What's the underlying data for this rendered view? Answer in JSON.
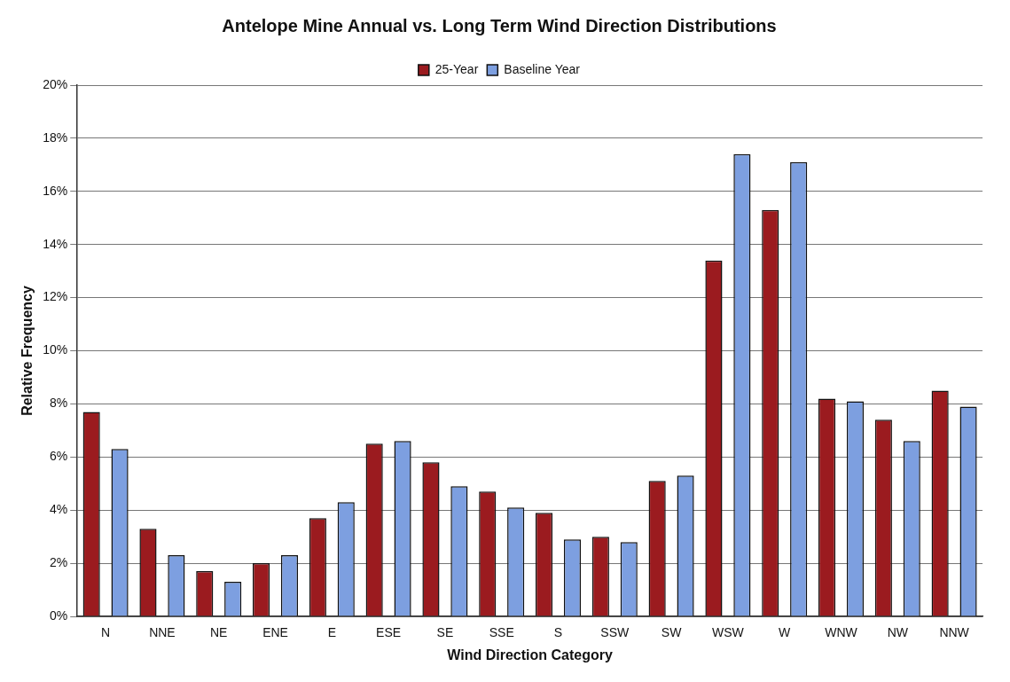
{
  "chart_data": {
    "type": "bar",
    "title": "Antelope Mine Annual vs. Long Term Wind Direction Distributions",
    "xlabel": "Wind Direction Category",
    "ylabel": "Relative Frequency",
    "categories": [
      "N",
      "NNE",
      "NE",
      "ENE",
      "E",
      "ESE",
      "SE",
      "SSE",
      "S",
      "SSW",
      "SW",
      "WSW",
      "W",
      "WNW",
      "NW",
      "NNW"
    ],
    "series": [
      {
        "name": "25-Year",
        "color": "#9b1b1f",
        "values": [
          7.7,
          3.3,
          1.7,
          2.0,
          3.7,
          6.5,
          5.8,
          4.7,
          3.9,
          3.0,
          5.1,
          13.4,
          15.3,
          8.2,
          7.4,
          8.5
        ]
      },
      {
        "name": "Baseline Year",
        "color": "#7d9fe0",
        "values": [
          6.3,
          2.3,
          1.3,
          2.3,
          4.3,
          6.6,
          4.9,
          4.1,
          2.9,
          2.8,
          5.3,
          17.4,
          17.1,
          8.1,
          6.6,
          7.9
        ]
      }
    ],
    "ylim": [
      0,
      20
    ],
    "yticks": [
      {
        "value": 0,
        "label": "0%"
      },
      {
        "value": 2,
        "label": "2%"
      },
      {
        "value": 4,
        "label": "4%"
      },
      {
        "value": 6,
        "label": "6%"
      },
      {
        "value": 8,
        "label": "8%"
      },
      {
        "value": 10,
        "label": "10%"
      },
      {
        "value": 12,
        "label": "12%"
      },
      {
        "value": 14,
        "label": "14%"
      },
      {
        "value": 16,
        "label": "16%"
      },
      {
        "value": 18,
        "label": "18%"
      },
      {
        "value": 20,
        "label": "20%"
      }
    ],
    "grid": "y",
    "legend": "top"
  }
}
